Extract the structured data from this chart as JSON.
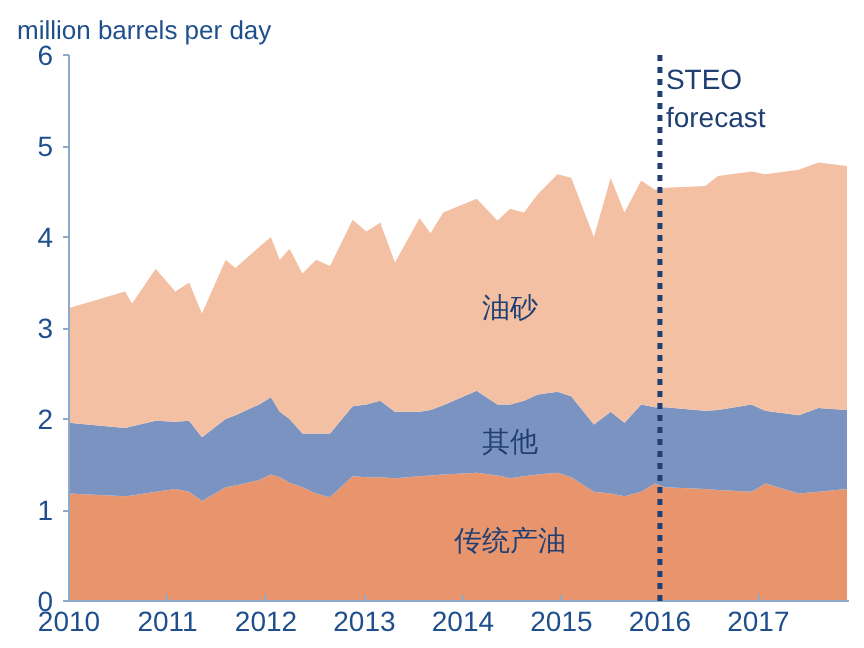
{
  "chart_data": {
    "type": "area",
    "stacked": true,
    "ylabel": "million barrels per day",
    "x": [
      2010.0,
      2010.57,
      2010.64,
      2010.88,
      2011.08,
      2011.22,
      2011.35,
      2011.59,
      2011.69,
      2011.93,
      2012.05,
      2012.14,
      2012.24,
      2012.37,
      2012.51,
      2012.65,
      2012.88,
      2013.02,
      2013.16,
      2013.31,
      2013.56,
      2013.67,
      2013.8,
      2014.14,
      2014.35,
      2014.48,
      2014.62,
      2014.76,
      2014.96,
      2015.1,
      2015.33,
      2015.5,
      2015.64,
      2015.81,
      2015.95,
      2016.05,
      2016.46,
      2016.59,
      2016.93,
      2017.07,
      2017.41,
      2017.61,
      2017.9
    ],
    "series": [
      {
        "name": "传统产油",
        "color": "#e8956e",
        "values": [
          1.18,
          1.15,
          1.16,
          1.2,
          1.23,
          1.2,
          1.1,
          1.25,
          1.27,
          1.33,
          1.39,
          1.36,
          1.3,
          1.25,
          1.18,
          1.14,
          1.37,
          1.36,
          1.36,
          1.35,
          1.37,
          1.38,
          1.39,
          1.41,
          1.38,
          1.35,
          1.37,
          1.39,
          1.41,
          1.36,
          1.2,
          1.18,
          1.15,
          1.2,
          1.29,
          1.25,
          1.23,
          1.22,
          1.2,
          1.29,
          1.18,
          1.2,
          1.23
        ]
      },
      {
        "name": "其他",
        "color": "#7b93c0",
        "values": [
          0.78,
          0.75,
          0.76,
          0.78,
          0.74,
          0.78,
          0.7,
          0.75,
          0.77,
          0.83,
          0.85,
          0.72,
          0.7,
          0.59,
          0.66,
          0.7,
          0.77,
          0.8,
          0.84,
          0.73,
          0.71,
          0.72,
          0.76,
          0.9,
          0.78,
          0.81,
          0.83,
          0.88,
          0.89,
          0.89,
          0.74,
          0.9,
          0.81,
          0.96,
          0.84,
          0.88,
          0.86,
          0.88,
          0.96,
          0.8,
          0.86,
          0.92,
          0.87
        ]
      },
      {
        "name": "油砂",
        "color": "#f4c0a4",
        "values": [
          1.26,
          1.5,
          1.35,
          1.67,
          1.43,
          1.52,
          1.36,
          1.75,
          1.62,
          1.73,
          1.76,
          1.67,
          1.87,
          1.76,
          1.91,
          1.84,
          2.05,
          1.9,
          1.96,
          1.64,
          2.13,
          1.94,
          2.12,
          2.11,
          2.02,
          2.15,
          2.07,
          2.2,
          2.39,
          2.4,
          2.06,
          2.57,
          2.31,
          2.46,
          2.39,
          2.41,
          2.47,
          2.57,
          2.56,
          2.6,
          2.7,
          2.7,
          2.68
        ]
      }
    ],
    "xlim": [
      2010,
      2017.92
    ],
    "xticks": [
      2010,
      2011,
      2012,
      2013,
      2014,
      2015,
      2016,
      2017
    ],
    "ylim": [
      0,
      6
    ],
    "yticks": [
      0,
      1,
      2,
      3,
      4,
      5,
      6
    ],
    "ref_lines": [
      {
        "axis": "x",
        "value": 2016,
        "label": "STEO\nforecast",
        "color": "#1f3f73",
        "line_style": "dotted"
      }
    ],
    "grid": false
  }
}
